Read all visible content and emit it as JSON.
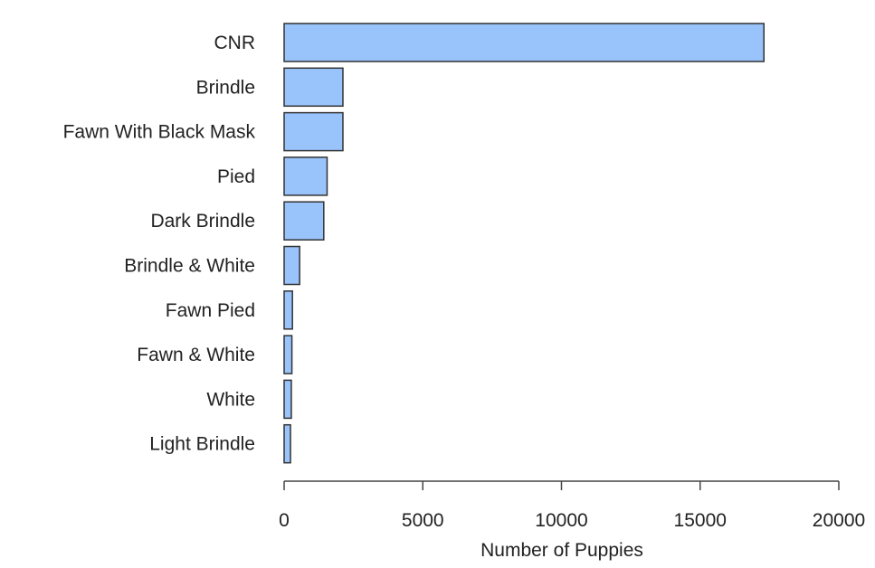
{
  "chart_data": {
    "type": "bar",
    "orientation": "horizontal",
    "categories": [
      "CNR",
      "Brindle",
      "Fawn With Black Mask",
      "Pied",
      "Dark Brindle",
      "Brindle & White",
      "Fawn Pied",
      "Fawn & White",
      "White",
      "Light Brindle"
    ],
    "values": [
      17300,
      2120,
      2120,
      1550,
      1430,
      560,
      300,
      280,
      260,
      230
    ],
    "title": "",
    "xlabel": "Number of Puppies",
    "ylabel": "",
    "xlim": [
      0,
      20000
    ],
    "xticks": [
      0,
      5000,
      10000,
      15000,
      20000
    ],
    "xtick_labels": [
      "0",
      "5000",
      "10000",
      "15000",
      "20000"
    ],
    "grid": false,
    "legend": "none",
    "bar_color": "#99c3fb",
    "bar_edge_color": "#333333"
  }
}
